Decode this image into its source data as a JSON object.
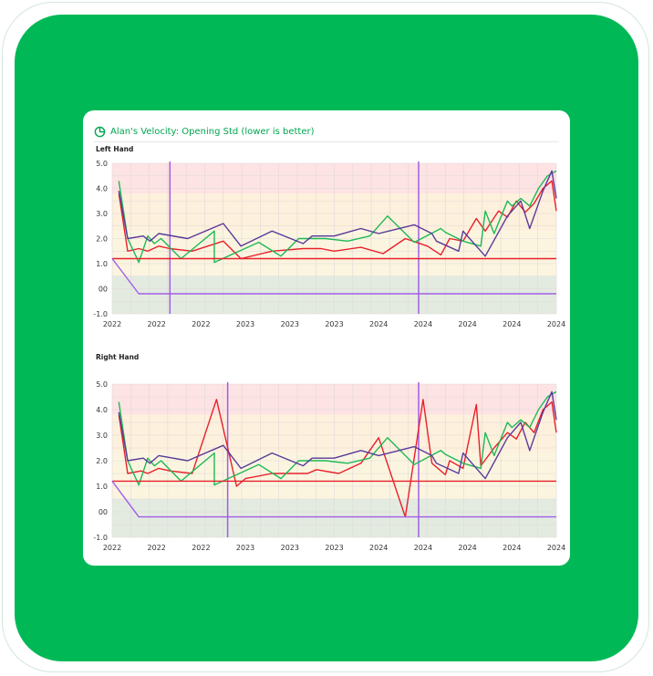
{
  "card": {
    "title": "Alan's Velocity: Opening Std (lower is better)",
    "icon": "pie-chart-icon"
  },
  "colors": {
    "background": "#ffffff",
    "panel": "#00b956",
    "title": "#00a651",
    "band_high": "#fde3e3",
    "band_mid": "#fdf0dc",
    "band_low": "#fbf5e0",
    "band_bottom": "#e3ebe1"
  },
  "chart_data": [
    {
      "type": "line",
      "title": "Left Hand",
      "ylim": [
        -1,
        5
      ],
      "y_ticks": [
        "5.0",
        "4.0",
        "3.0",
        "2.0",
        "1.0",
        "00",
        "-1.0"
      ],
      "y_tick_values": [
        5,
        4,
        3,
        2,
        1,
        0,
        -1
      ],
      "x_tick_labels": [
        "2022",
        "2022",
        "2022",
        "2023",
        "2023",
        "2023",
        "2024",
        "2024",
        "2024",
        "2024",
        "2024"
      ],
      "grid": true,
      "bands": [
        {
          "from": 3.8,
          "to": 5.0,
          "color": "#fde3e3"
        },
        {
          "from": 2.3,
          "to": 3.8,
          "color": "#fdf0dc"
        },
        {
          "from": 0.5,
          "to": 2.3,
          "color": "#fbf5e0"
        },
        {
          "from": -1.0,
          "to": 0.5,
          "color": "#e3ebe1"
        }
      ],
      "vlines": [
        1.3,
        6.9
      ],
      "x_range": [
        0,
        10
      ],
      "series": [
        {
          "color": "#e8202a",
          "x": [
            0.15,
            0.35,
            0.6,
            0.8,
            1.05,
            1.3,
            1.8,
            2.5,
            2.9,
            3.6,
            4.3,
            4.7,
            5.0,
            5.6,
            6.1,
            6.6,
            7.1,
            7.4,
            7.6,
            7.9,
            8.2,
            8.4,
            8.7,
            8.9,
            9.1,
            9.3,
            9.5,
            9.7,
            9.9,
            10.0
          ],
          "y": [
            3.8,
            1.5,
            1.6,
            1.5,
            1.7,
            1.6,
            1.5,
            1.9,
            1.2,
            1.5,
            1.6,
            1.6,
            1.5,
            1.65,
            1.4,
            2.0,
            1.7,
            1.35,
            2.0,
            1.9,
            2.8,
            2.3,
            3.1,
            2.85,
            3.5,
            3.05,
            3.4,
            4.0,
            4.3,
            3.1
          ]
        },
        {
          "color": "#1db955",
          "x": [
            0.15,
            0.35,
            0.6,
            0.8,
            0.95,
            1.1,
            1.55,
            2.3,
            2.3,
            3.3,
            3.8,
            4.2,
            4.8,
            5.3,
            5.8,
            6.2,
            6.8,
            7.4,
            7.5,
            7.9,
            8.3,
            8.4,
            8.6,
            8.9,
            9.0,
            9.2,
            9.4,
            9.6,
            9.8,
            10.0
          ],
          "y": [
            4.3,
            2.0,
            1.05,
            2.1,
            1.8,
            2.0,
            1.2,
            2.3,
            1.05,
            1.85,
            1.3,
            2.0,
            2.0,
            1.9,
            2.1,
            2.9,
            1.85,
            2.4,
            2.25,
            1.9,
            1.7,
            3.1,
            2.2,
            3.5,
            3.3,
            3.6,
            3.3,
            4.0,
            4.5,
            4.7
          ]
        },
        {
          "color": "#5b3a99",
          "x": [
            0.15,
            0.35,
            0.7,
            0.85,
            1.05,
            1.7,
            2.5,
            2.9,
            3.6,
            4.3,
            4.5,
            5.0,
            5.6,
            6.0,
            6.8,
            7.2,
            7.3,
            7.8,
            7.9,
            8.4,
            8.9,
            9.2,
            9.4,
            9.7,
            9.9,
            10.0
          ],
          "y": [
            3.9,
            2.0,
            2.1,
            1.9,
            2.2,
            2.0,
            2.6,
            1.7,
            2.3,
            1.8,
            2.1,
            2.1,
            2.4,
            2.2,
            2.55,
            2.2,
            1.9,
            1.5,
            2.3,
            1.3,
            2.9,
            3.5,
            2.4,
            3.9,
            4.7,
            3.6
          ]
        },
        {
          "color": "#e8202a",
          "x": [
            0.0,
            10.0
          ],
          "y": [
            1.2,
            1.2
          ]
        },
        {
          "color": "#a35ce8",
          "x": [
            0.0,
            0.6,
            10.0
          ],
          "y": [
            1.2,
            -0.2,
            -0.2
          ]
        }
      ]
    },
    {
      "type": "line",
      "title": "Right Hand",
      "ylim": [
        -1,
        5
      ],
      "y_ticks": [
        "5.0",
        "4.0",
        "3.0",
        "2.0",
        "1.0",
        "00",
        "-1.0"
      ],
      "y_tick_values": [
        5,
        4,
        3,
        2,
        1,
        0,
        -1
      ],
      "x_tick_labels": [
        "2022",
        "2022",
        "2022",
        "2023",
        "2023",
        "2023",
        "2024",
        "2024",
        "2024",
        "2024",
        "2024"
      ],
      "grid": true,
      "bands": [
        {
          "from": 3.8,
          "to": 5.0,
          "color": "#fde3e3"
        },
        {
          "from": 2.3,
          "to": 3.8,
          "color": "#fdf0dc"
        },
        {
          "from": 0.5,
          "to": 2.3,
          "color": "#fbf5e0"
        },
        {
          "from": -1.0,
          "to": 0.5,
          "color": "#e3ebe1"
        }
      ],
      "vlines": [
        2.6,
        6.9
      ],
      "x_range": [
        0,
        10
      ],
      "series": [
        {
          "color": "#e8202a",
          "x": [
            0.15,
            0.35,
            0.65,
            0.8,
            1.05,
            1.3,
            1.8,
            2.35,
            2.8,
            3.0,
            3.6,
            4.4,
            4.6,
            5.1,
            5.6,
            6.0,
            6.6,
            7.0,
            7.2,
            7.5,
            7.6,
            7.9,
            8.2,
            8.3,
            8.6,
            8.9,
            9.1,
            9.3,
            9.5,
            9.7,
            9.9,
            10.0
          ],
          "y": [
            3.8,
            1.5,
            1.6,
            1.5,
            1.7,
            1.6,
            1.5,
            4.4,
            1.0,
            1.3,
            1.5,
            1.5,
            1.65,
            1.5,
            1.9,
            2.9,
            -0.2,
            4.4,
            1.9,
            1.45,
            2.0,
            1.7,
            4.2,
            1.8,
            2.5,
            3.1,
            2.85,
            3.5,
            3.1,
            4.0,
            4.3,
            3.1
          ]
        },
        {
          "color": "#1db955",
          "x": [
            0.15,
            0.35,
            0.6,
            0.8,
            0.95,
            1.1,
            1.55,
            2.3,
            2.3,
            3.3,
            3.8,
            4.2,
            4.8,
            5.3,
            5.8,
            6.2,
            6.8,
            7.4,
            7.5,
            7.9,
            8.3,
            8.4,
            8.6,
            8.9,
            9.0,
            9.2,
            9.4,
            9.6,
            9.8,
            10.0
          ],
          "y": [
            4.3,
            2.0,
            1.05,
            2.1,
            1.8,
            2.0,
            1.2,
            2.3,
            1.05,
            1.85,
            1.3,
            2.0,
            2.0,
            1.9,
            2.1,
            2.9,
            1.85,
            2.4,
            2.25,
            1.9,
            1.7,
            3.1,
            2.2,
            3.5,
            3.3,
            3.6,
            3.3,
            4.0,
            4.5,
            4.7
          ]
        },
        {
          "color": "#5b3a99",
          "x": [
            0.15,
            0.35,
            0.7,
            0.85,
            1.05,
            1.7,
            2.5,
            2.9,
            3.6,
            4.3,
            4.5,
            5.0,
            5.6,
            6.0,
            6.8,
            7.2,
            7.3,
            7.8,
            7.9,
            8.4,
            8.9,
            9.2,
            9.4,
            9.7,
            9.9,
            10.0
          ],
          "y": [
            3.9,
            2.0,
            2.1,
            1.9,
            2.2,
            2.0,
            2.6,
            1.7,
            2.3,
            1.8,
            2.1,
            2.1,
            2.4,
            2.2,
            2.55,
            2.2,
            1.9,
            1.5,
            2.3,
            1.3,
            2.9,
            3.5,
            2.4,
            3.9,
            4.7,
            3.6
          ]
        },
        {
          "color": "#e8202a",
          "x": [
            0.0,
            10.0
          ],
          "y": [
            1.2,
            1.2
          ]
        },
        {
          "color": "#a35ce8",
          "x": [
            0.0,
            0.6,
            10.0
          ],
          "y": [
            1.2,
            -0.2,
            -0.2
          ]
        }
      ]
    }
  ]
}
